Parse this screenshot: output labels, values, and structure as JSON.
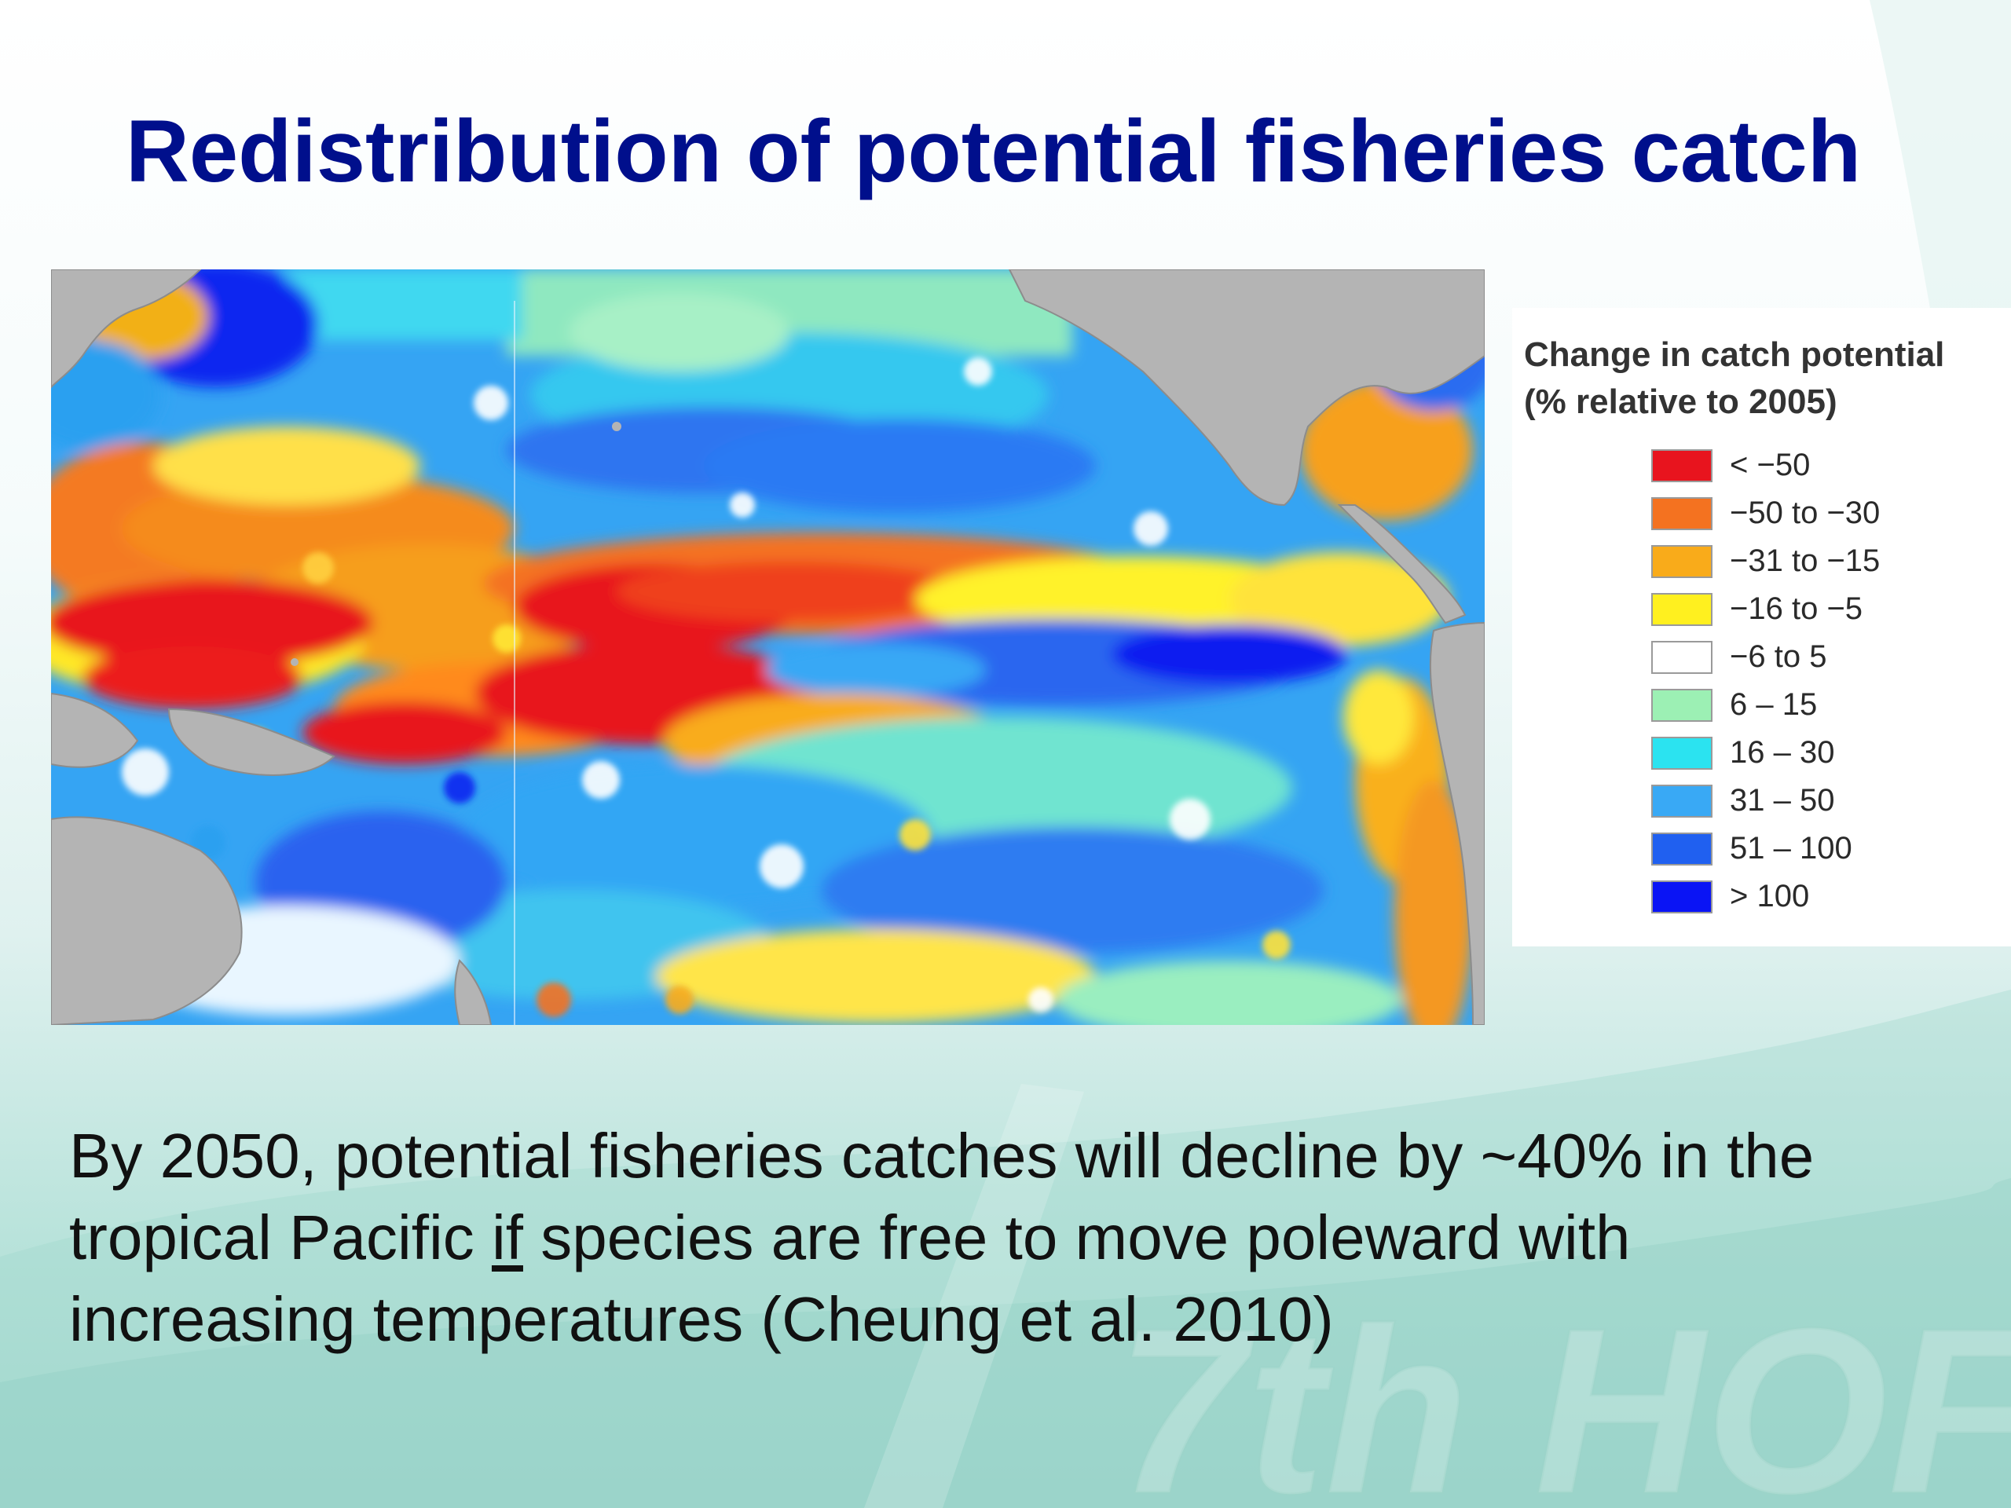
{
  "slide": {
    "title": "Redistribution of potential fisheries catch",
    "watermark": "7th HOF"
  },
  "map": {
    "alt": "Map of projected change in fisheries catch potential across the tropical Pacific Ocean",
    "land_color": "#b4b4b4"
  },
  "legend": {
    "title_line1": "Change in catch potential",
    "title_line2": "(% relative to 2005)",
    "items": [
      {
        "label": "< −50",
        "color": "#e8141e"
      },
      {
        "label": "−50  to  −30",
        "color": "#f47220"
      },
      {
        "label": "−31  to  −15",
        "color": "#f9ab1a"
      },
      {
        "label": "−16  to  −5",
        "color": "#fff01f"
      },
      {
        "label": "−6  to  5",
        "color": "#ffffff"
      },
      {
        "label": "6 – 15",
        "color": "#9cf0b4"
      },
      {
        "label": "16 – 30",
        "color": "#2be3f0"
      },
      {
        "label": "31 – 50",
        "color": "#39a9f5"
      },
      {
        "label": "51 – 100",
        "color": "#2060f0"
      },
      {
        "label": "> 100",
        "color": "#0a14f5"
      }
    ]
  },
  "caption": {
    "line1": "By 2050, potential fisheries catches will decline by ~40% in the",
    "line2_before": "tropical Pacific ",
    "line2_emph": "if",
    "line2_after": " species are free to move poleward with",
    "line3": "increasing temperatures (Cheung et al. 2010)"
  }
}
